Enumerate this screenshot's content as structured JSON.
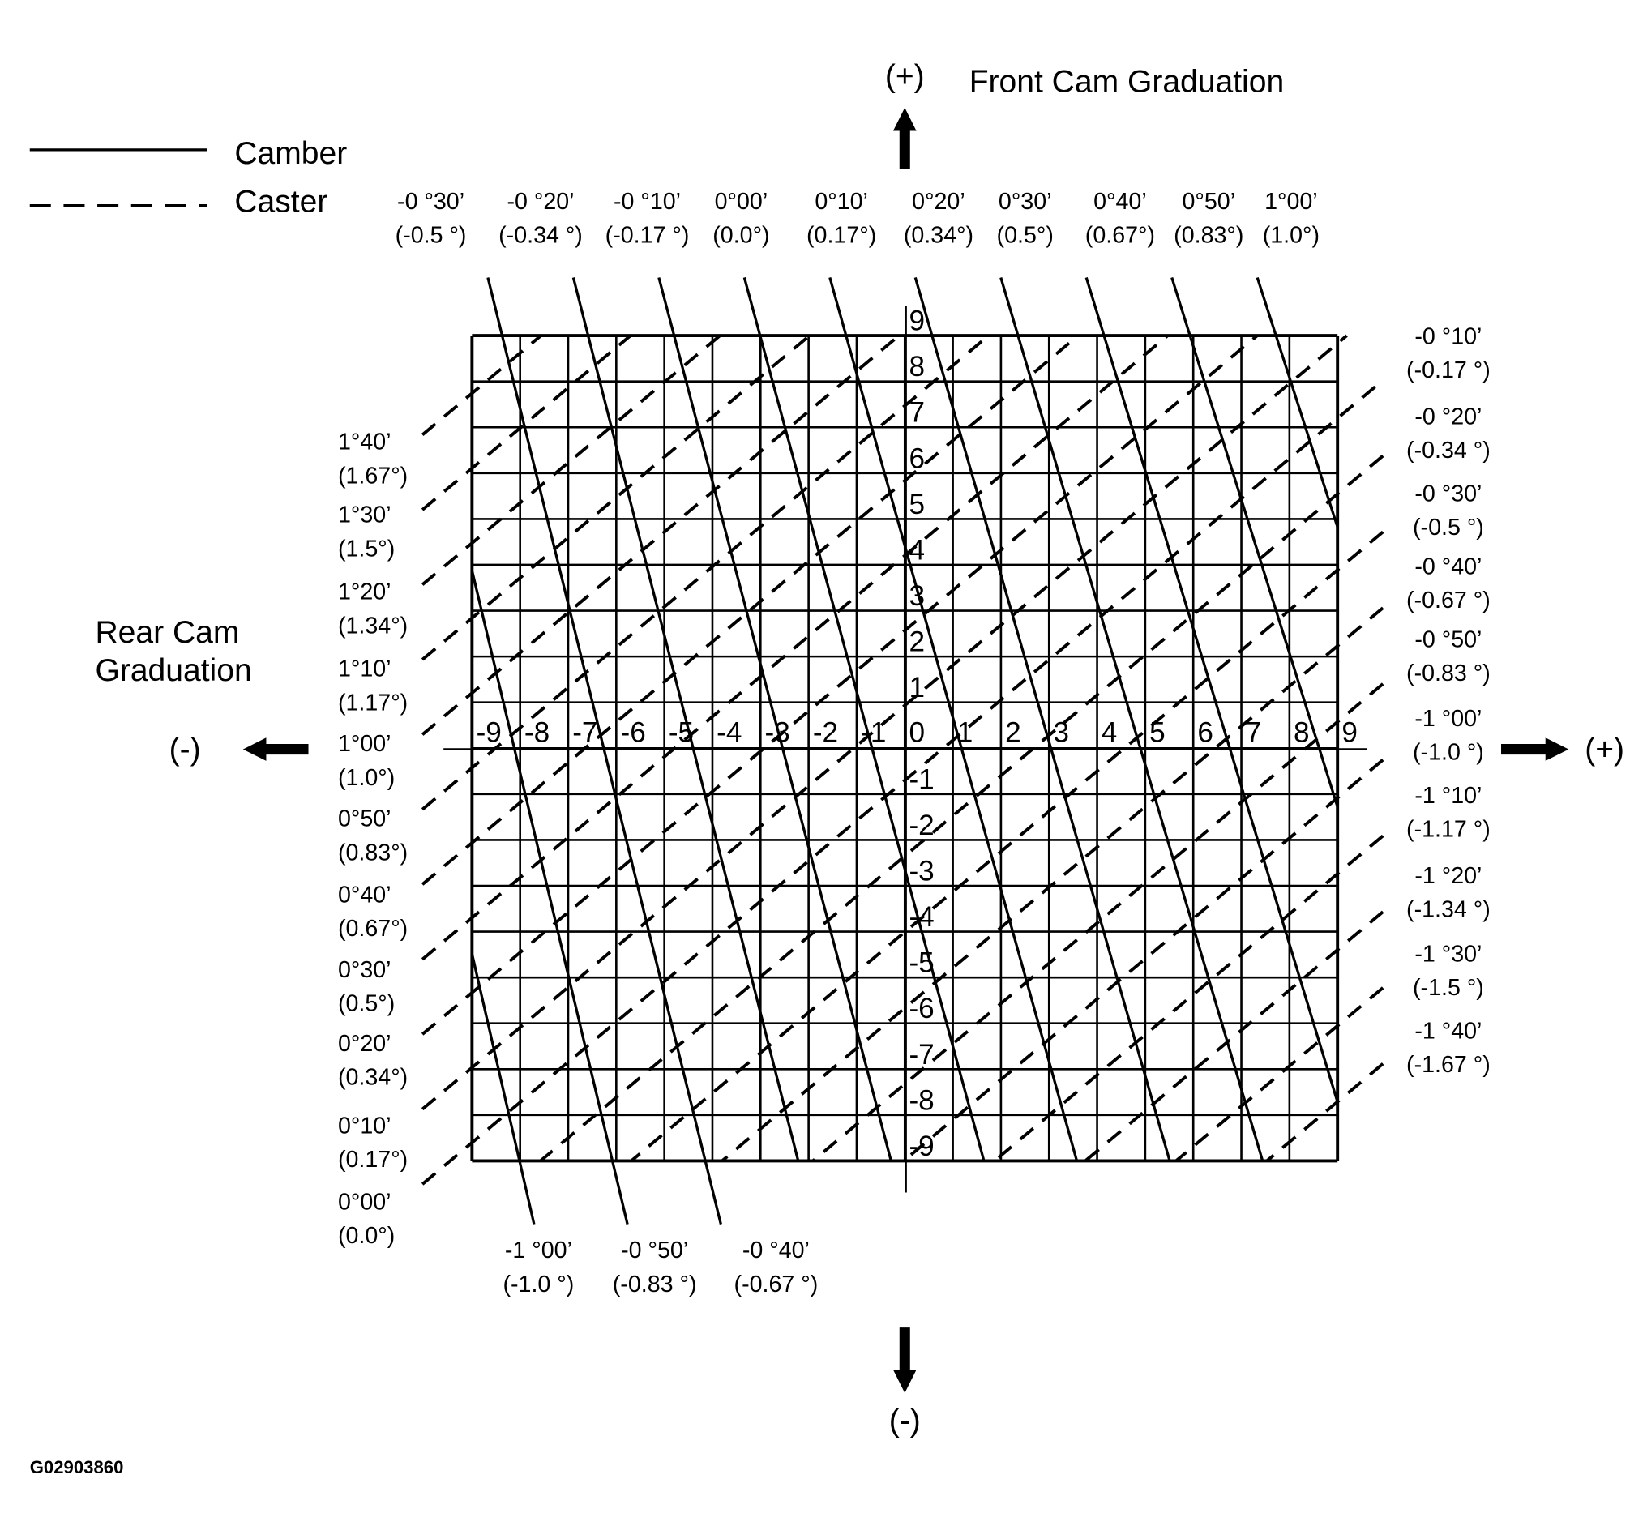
{
  "titles": {
    "front_sign": "(+)",
    "front": "Front Cam Graduation",
    "rear_line1": "Rear Cam",
    "rear_line2": "Graduation",
    "left_sign": "(-)",
    "right_sign": "(+)",
    "bottom_sign": "(-)"
  },
  "legend": {
    "camber": "Camber",
    "caster": "Caster"
  },
  "figure_id": "G02903860",
  "x_ticks": [
    "-9",
    "-8",
    "-7",
    "-6",
    "-5",
    "-4",
    "-3",
    "-2",
    "-1",
    "0",
    "1",
    "2",
    "3",
    "4",
    "5",
    "6",
    "7",
    "8",
    "9"
  ],
  "y_ticks": [
    "9",
    "8",
    "7",
    "6",
    "5",
    "4",
    "3",
    "2",
    "1",
    "-1",
    "-2",
    "-3",
    "-4",
    "-5",
    "-6",
    "-7",
    "-8",
    "-9"
  ],
  "camber_top": [
    {
      "dms": "-0 °30’",
      "deg": "(-0.5 °)"
    },
    {
      "dms": "-0 °20’",
      "deg": "(-0.34 °)"
    },
    {
      "dms": "-0 °10’",
      "deg": "(-0.17 °)"
    },
    {
      "dms": "0°00’",
      "deg": "(0.0°)"
    },
    {
      "dms": "0°10’",
      "deg": "(0.17°)"
    },
    {
      "dms": "0°20’",
      "deg": "(0.34°)"
    },
    {
      "dms": "0°30’",
      "deg": "(0.5°)"
    },
    {
      "dms": "0°40’",
      "deg": "(0.67°)"
    },
    {
      "dms": "0°50’",
      "deg": "(0.83°)"
    },
    {
      "dms": "1°00’",
      "deg": "(1.0°)"
    }
  ],
  "camber_bottom": [
    {
      "dms": "-1 °00’",
      "deg": "(-1.0 °)"
    },
    {
      "dms": "-0 °50’",
      "deg": "(-0.83 °)"
    },
    {
      "dms": "-0 °40’",
      "deg": "(-0.67 °)"
    }
  ],
  "caster_left": [
    {
      "dms": "1°40’",
      "deg": "(1.67°)"
    },
    {
      "dms": "1°30’",
      "deg": "(1.5°)"
    },
    {
      "dms": "1°20’",
      "deg": "(1.34°)"
    },
    {
      "dms": "1°10’",
      "deg": "(1.17°)"
    },
    {
      "dms": "1°00’",
      "deg": "(1.0°)"
    },
    {
      "dms": "0°50’",
      "deg": "(0.83°)"
    },
    {
      "dms": "0°40’",
      "deg": "(0.67°)"
    },
    {
      "dms": "0°30’",
      "deg": "(0.5°)"
    },
    {
      "dms": "0°20’",
      "deg": "(0.34°)"
    },
    {
      "dms": "0°10’",
      "deg": "(0.17°)"
    },
    {
      "dms": "0°00’",
      "deg": "(0.0°)"
    }
  ],
  "caster_right": [
    {
      "dms": "-0 °10’",
      "deg": "(-0.17 °)"
    },
    {
      "dms": "-0 °20’",
      "deg": "(-0.34 °)"
    },
    {
      "dms": "-0 °30’",
      "deg": "(-0.5 °)"
    },
    {
      "dms": "-0 °40’",
      "deg": "(-0.67 °)"
    },
    {
      "dms": "-0 °50’",
      "deg": "(-0.83 °)"
    },
    {
      "dms": "-1 °00’",
      "deg": "(-1.0 °)"
    },
    {
      "dms": "-1 °10’",
      "deg": "(-1.17 °)"
    },
    {
      "dms": "-1 °20’",
      "deg": "(-1.34 °)"
    },
    {
      "dms": "-1 °30’",
      "deg": "(-1.5 °)"
    },
    {
      "dms": "-1 °40’",
      "deg": "(-1.67 °)"
    }
  ]
}
